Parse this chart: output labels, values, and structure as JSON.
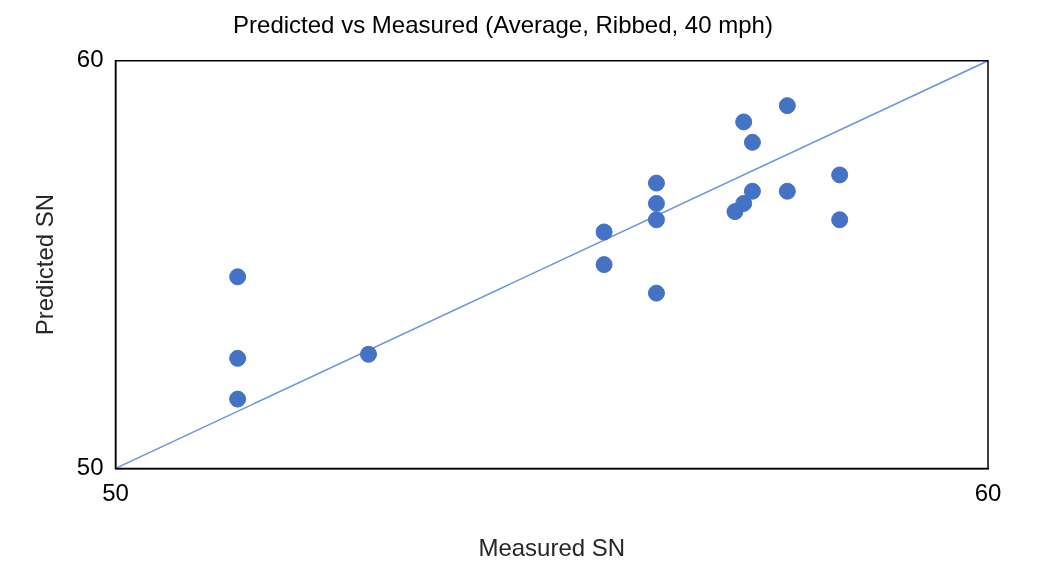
{
  "chart_data": {
    "type": "scatter",
    "title": "Predicted vs Measured (Average, Ribbed, 40 mph)",
    "xlabel": "Measured SN",
    "ylabel": "Predicted SN",
    "xlim": [
      50,
      60
    ],
    "xticks": [
      50,
      60
    ],
    "ylim": [
      50,
      60
    ],
    "yticks": [
      50,
      60
    ],
    "grid": false,
    "legend": false,
    "marker": "circle",
    "series": [
      {
        "color": "#4472c4",
        "x": [
          51.4,
          51.4,
          51.4,
          52.9,
          55.6,
          55.6,
          56.2,
          56.2,
          56.2,
          56.2,
          57.2,
          57.3,
          57.3,
          57.1,
          57.2,
          57.7,
          57.7,
          58.3,
          58.3
        ],
        "values": [
          54.7,
          52.7,
          51.7,
          52.8,
          55.8,
          55.0,
          57.0,
          56.5,
          56.1,
          54.3,
          58.5,
          58.0,
          56.8,
          56.3,
          56.5,
          58.9,
          56.8,
          57.2,
          56.1
        ]
      },
      {
        "type": "line",
        "color": "#6f96d8",
        "x": [
          50,
          60
        ],
        "values": [
          50,
          60
        ],
        "marker": "none"
      }
    ]
  }
}
